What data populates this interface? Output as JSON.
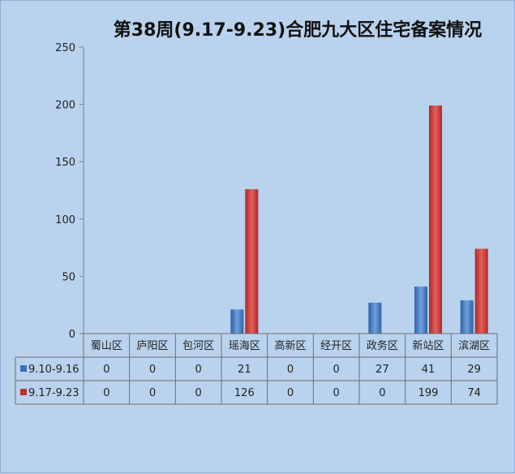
{
  "chart_data": {
    "type": "bar",
    "title": "第38周(9.17-9.23)合肥九大区住宅备案情况",
    "categories": [
      "蜀山区",
      "庐阳区",
      "包河区",
      "瑶海区",
      "高新区",
      "经开区",
      "政务区",
      "新站区",
      "滨湖区"
    ],
    "series": [
      {
        "name": "9.10-9.16",
        "values": [
          0,
          0,
          0,
          21,
          0,
          0,
          27,
          41,
          29
        ],
        "color": "#3b6fb6",
        "color_light": "#6f9fdc"
      },
      {
        "name": "9.17-9.23",
        "values": [
          0,
          0,
          0,
          126,
          0,
          0,
          0,
          199,
          74
        ],
        "color": "#c0302c",
        "color_light": "#e2605c"
      }
    ],
    "ylim": [
      0,
      250
    ],
    "yticks": [
      0,
      50,
      100,
      150,
      200,
      250
    ],
    "grid": false,
    "legend": "data-table",
    "xlabel": "",
    "ylabel": ""
  }
}
